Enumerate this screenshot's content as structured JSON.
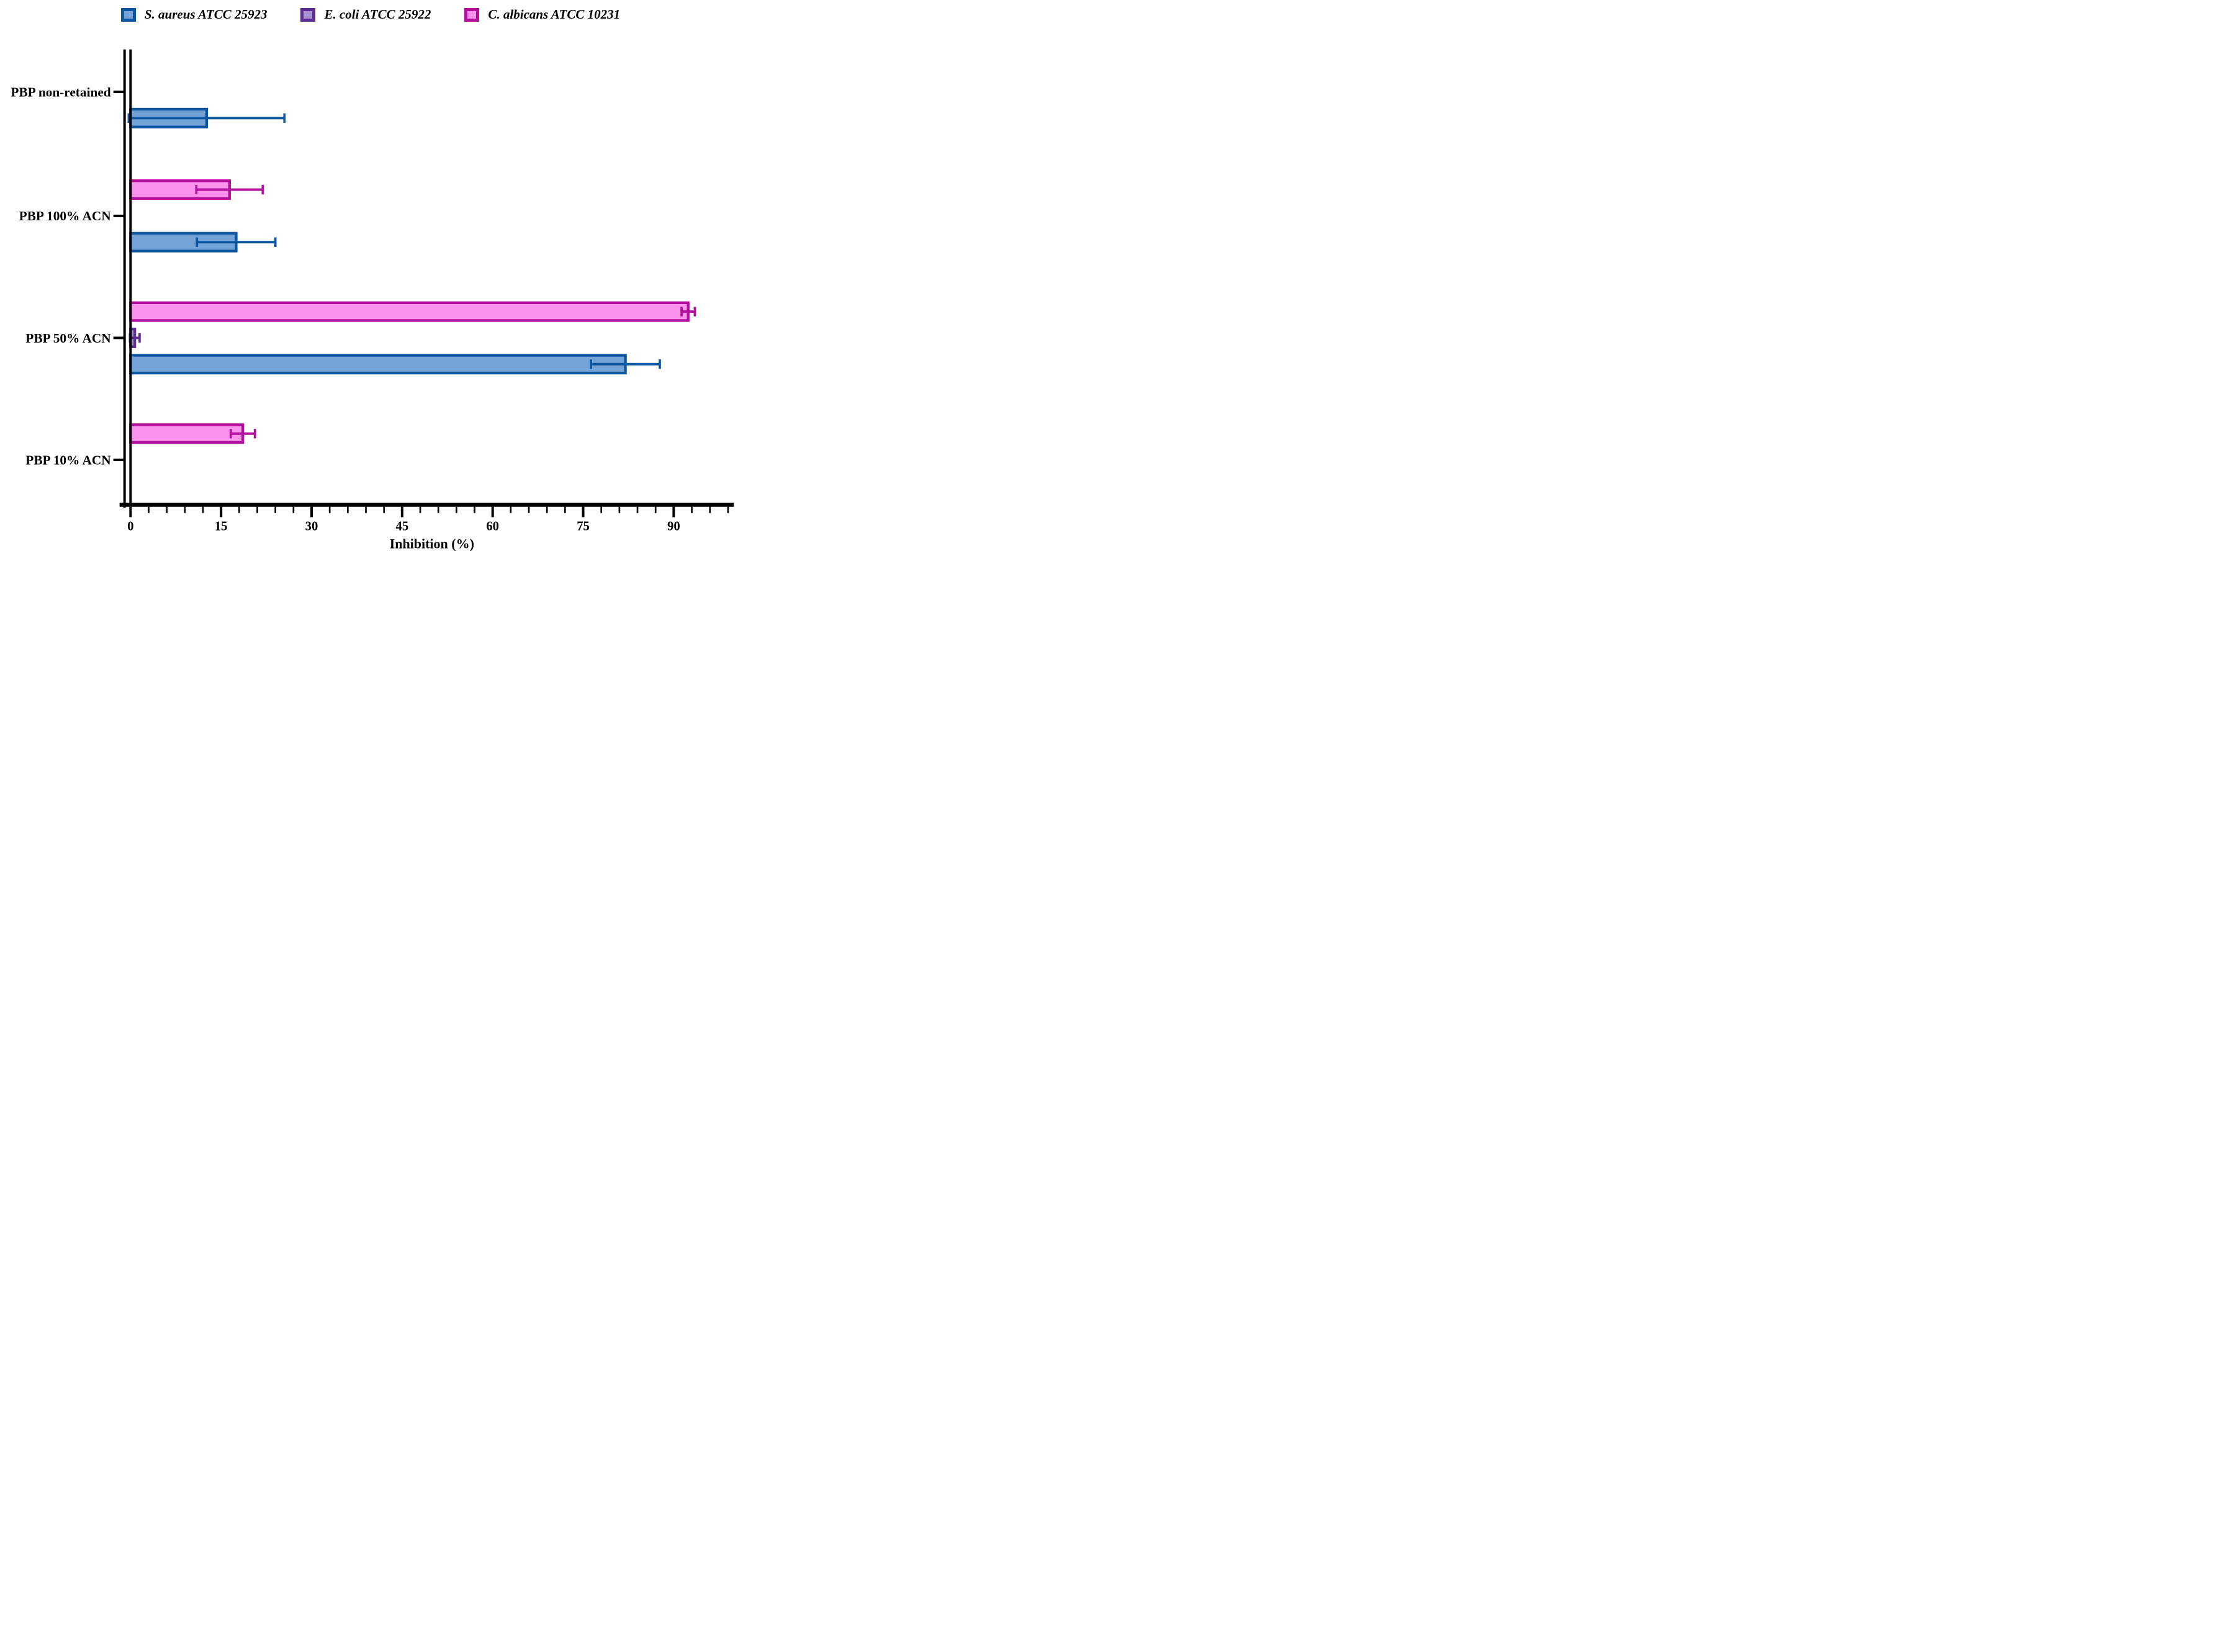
{
  "chart_data": {
    "type": "bar",
    "orientation": "horizontal",
    "title": "",
    "xlabel": "Inhibition (%)",
    "ylabel": "",
    "xlim": [
      0,
      99.8
    ],
    "x_major_ticks": [
      0,
      15,
      30,
      45,
      60,
      75,
      90
    ],
    "x_minor_tick_step": 3,
    "grid": false,
    "legend_position": "top",
    "categories": [
      "PBP non-retained",
      "PBP 100% ACN",
      "PBP 50% ACN",
      "PBP 10% ACN"
    ],
    "series": [
      {
        "name": "S. aureus ATCC 25923",
        "fill": "#74a3d8",
        "edge": "#0e56a0",
        "values": [
          12.6,
          17.5,
          82.0,
          null
        ],
        "errors": [
          12.9,
          6.5,
          5.7,
          null
        ]
      },
      {
        "name": "E. coli ATCC 25922",
        "fill": "#ab90d4",
        "edge": "#5c2e92",
        "values": [
          null,
          null,
          0.7,
          null
        ],
        "errors": [
          null,
          null,
          0.8,
          null
        ]
      },
      {
        "name": "C. albicans ATCC 10231",
        "fill": "#fb92ec",
        "edge": "#b1109c",
        "values": [
          null,
          16.4,
          92.4,
          18.6
        ],
        "errors": [
          null,
          5.5,
          1.1,
          2.0
        ]
      }
    ],
    "bar_order_top_to_bottom": [
      "C. albicans ATCC 10231",
      "E. coli ATCC 25922",
      "S. aureus ATCC 25923"
    ],
    "axis_color": "#000000"
  }
}
